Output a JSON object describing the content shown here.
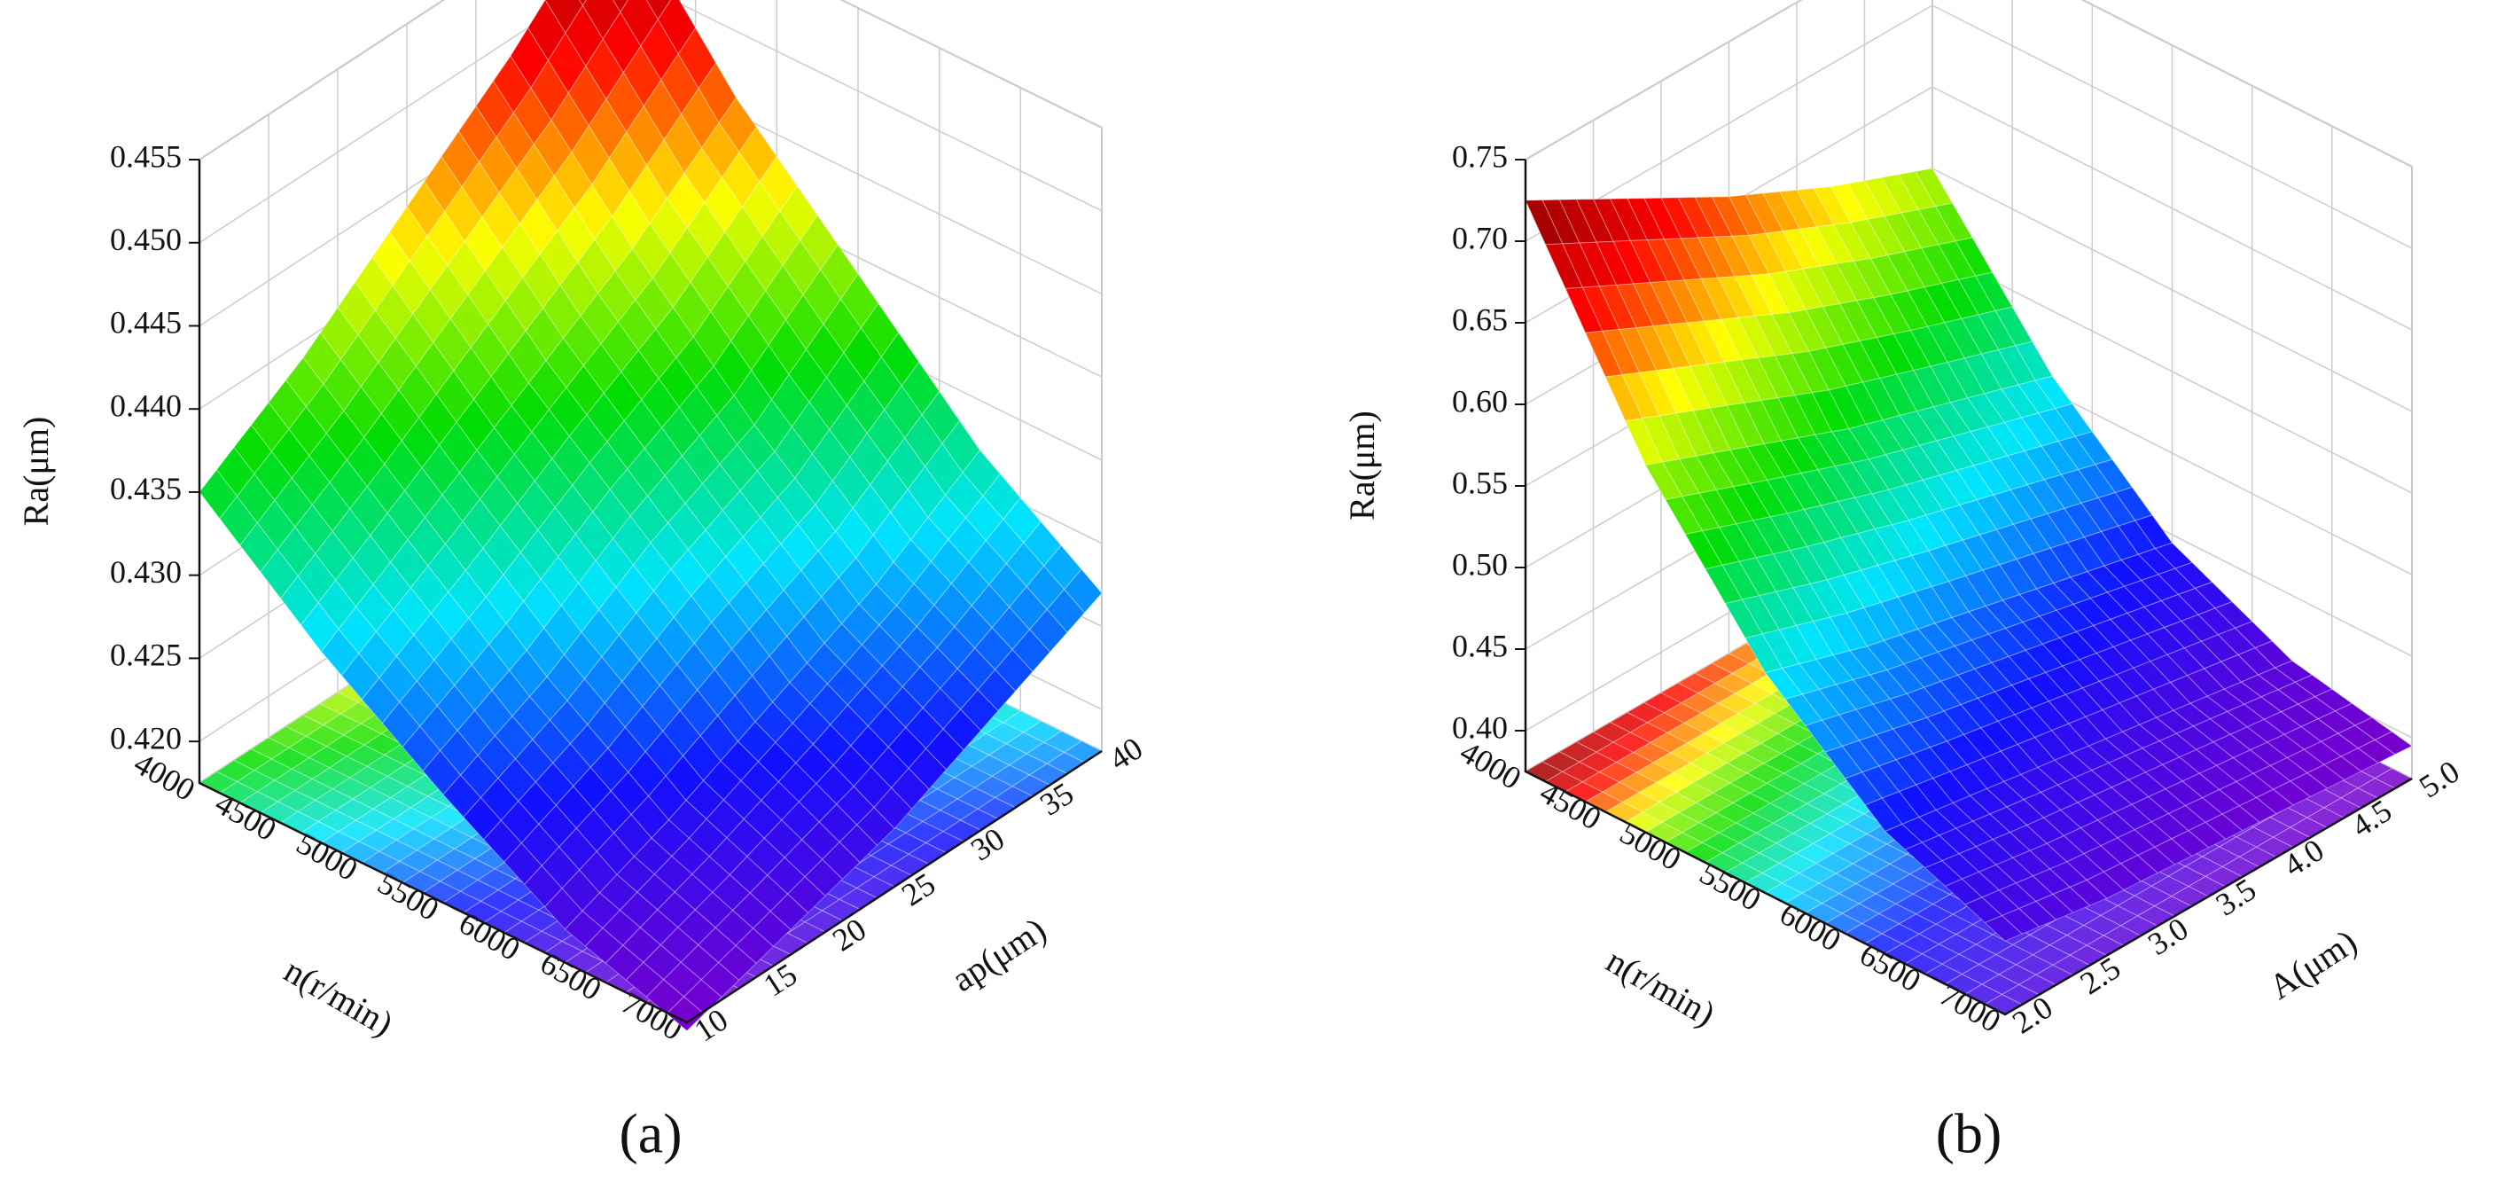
{
  "chart_data": [
    {
      "type": "surface",
      "label": "(a)",
      "xlabel": "n(r/min)",
      "ylabel": "ap(μm)",
      "zlabel": "Ra(μm)",
      "xlim": [
        4000,
        7000
      ],
      "ylim": [
        10,
        40
      ],
      "zlim": [
        0.4175,
        0.455
      ],
      "xticks": [
        4000,
        4500,
        5000,
        5500,
        6000,
        6500,
        7000
      ],
      "yticks": [
        10,
        15,
        20,
        25,
        30,
        35,
        40
      ],
      "zticks": [
        {
          "value": 0.42,
          "label": "0.420"
        },
        0.425,
        {
          "value": 0.43,
          "label": "0.430"
        },
        0.435,
        {
          "value": 0.44,
          "label": "0.440"
        },
        0.445,
        {
          "value": 0.45,
          "label": "0.450"
        },
        0.455
      ],
      "x": [
        4000,
        4750,
        5500,
        6250,
        7000
      ],
      "y": [
        10,
        17.5,
        25,
        32.5,
        40
      ],
      "z": [
        [
          0.435,
          0.439,
          0.444,
          0.449,
          0.455
        ],
        [
          0.429,
          0.433,
          0.437,
          0.441,
          0.446
        ],
        [
          0.424,
          0.427,
          0.431,
          0.434,
          0.439
        ],
        [
          0.4195,
          0.422,
          0.425,
          0.428,
          0.432
        ],
        [
          0.417,
          0.419,
          0.421,
          0.424,
          0.427
        ]
      ],
      "colormap": [
        "#7a00cc",
        "#1010ff",
        "#00e5ff",
        "#00dd00",
        "#ffff00",
        "#ff0000",
        "#8b0000"
      ]
    },
    {
      "type": "surface",
      "label": "(b)",
      "xlabel": "n(r/min)",
      "ylabel": "A(μm)",
      "zlabel": "Ra(μm)",
      "xlim": [
        4000,
        7000
      ],
      "ylim": [
        2,
        5
      ],
      "zlim": [
        0.375,
        0.75
      ],
      "xticks": [
        4000,
        4500,
        5000,
        5500,
        6000,
        6500,
        7000
      ],
      "yticks": [
        {
          "value": 2,
          "label": "2.0"
        },
        2.5,
        {
          "value": 3,
          "label": "3.0"
        },
        3.5,
        {
          "value": 4,
          "label": "4.0"
        },
        4.5,
        {
          "value": 5,
          "label": "5.0"
        }
      ],
      "zticks": [
        {
          "value": 0.4,
          "label": "0.40"
        },
        0.45,
        {
          "value": 0.5,
          "label": "0.50"
        },
        0.55,
        {
          "value": 0.6,
          "label": "0.60"
        },
        0.65,
        {
          "value": 0.7,
          "label": "0.70"
        },
        0.75
      ],
      "x": [
        4000,
        4750,
        5500,
        6250,
        7000
      ],
      "y": [
        2,
        2.75,
        3.5,
        4.25,
        5
      ],
      "z": [
        [
          0.725,
          0.69,
          0.655,
          0.625,
          0.6
        ],
        [
          0.6,
          0.575,
          0.55,
          0.53,
          0.51
        ],
        [
          0.51,
          0.49,
          0.475,
          0.46,
          0.445
        ],
        [
          0.45,
          0.44,
          0.43,
          0.42,
          0.41
        ],
        [
          0.42,
          0.41,
          0.405,
          0.4,
          0.395
        ]
      ],
      "colormap": [
        "#7a00cc",
        "#1010ff",
        "#00e5ff",
        "#00dd00",
        "#ffff00",
        "#ff0000",
        "#8b0000"
      ]
    }
  ]
}
